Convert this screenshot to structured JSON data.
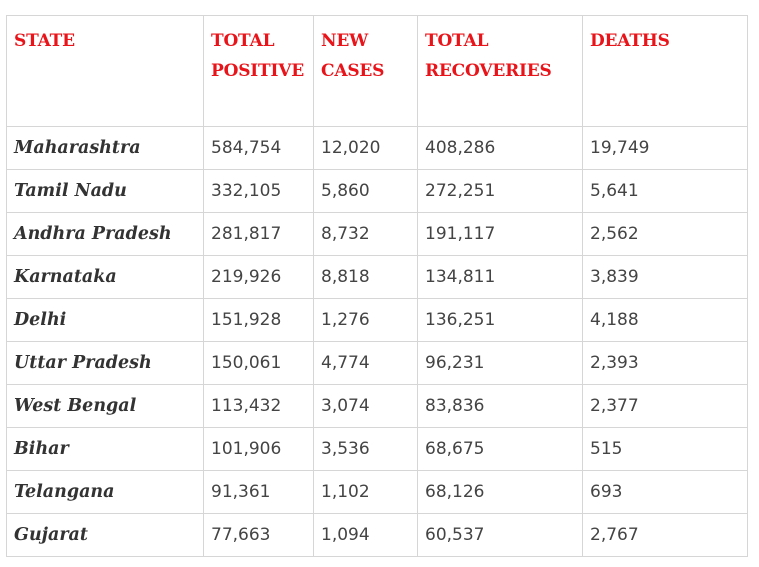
{
  "colors": {
    "header_text": "#e8141a",
    "state_text": "#333333",
    "cell_text": "#444444",
    "border": "#d6d6d6"
  },
  "table": {
    "headers": {
      "state": "STATE",
      "total_positive": "TOTAL POSITIVE",
      "new_cases": "NEW CASES",
      "total_recoveries": "TOTAL RECOVERIES",
      "deaths": "DEATHS"
    },
    "rows": [
      {
        "state": "Maharashtra",
        "total_positive": "584,754",
        "new_cases": "12,020",
        "total_recoveries": "408,286",
        "deaths": "19,749"
      },
      {
        "state": "Tamil Nadu",
        "total_positive": "332,105",
        "new_cases": "5,860",
        "total_recoveries": "272,251",
        "deaths": "5,641"
      },
      {
        "state": "Andhra Pradesh",
        "total_positive": "281,817",
        "new_cases": "8,732",
        "total_recoveries": "191,117",
        "deaths": "2,562"
      },
      {
        "state": "Karnataka",
        "total_positive": "219,926",
        "new_cases": "8,818",
        "total_recoveries": "134,811",
        "deaths": "3,839"
      },
      {
        "state": "Delhi",
        "total_positive": "151,928",
        "new_cases": "1,276",
        "total_recoveries": "136,251",
        "deaths": "4,188"
      },
      {
        "state": "Uttar Pradesh",
        "total_positive": "150,061",
        "new_cases": "4,774",
        "total_recoveries": "96,231",
        "deaths": "2,393"
      },
      {
        "state": "West Bengal",
        "total_positive": "113,432",
        "new_cases": "3,074",
        "total_recoveries": "83,836",
        "deaths": "2,377"
      },
      {
        "state": "Bihar",
        "total_positive": "101,906",
        "new_cases": "3,536",
        "total_recoveries": "68,675",
        "deaths": "515"
      },
      {
        "state": "Telangana",
        "total_positive": "91,361",
        "new_cases": "1,102",
        "total_recoveries": "68,126",
        "deaths": "693"
      },
      {
        "state": "Gujarat",
        "total_positive": "77,663",
        "new_cases": "1,094",
        "total_recoveries": "60,537",
        "deaths": "2,767"
      }
    ]
  }
}
